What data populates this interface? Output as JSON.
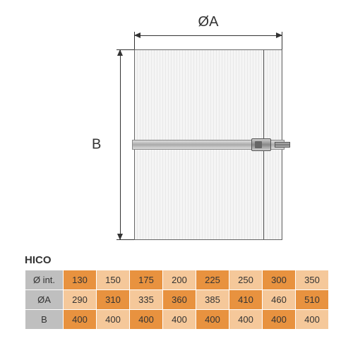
{
  "diagram": {
    "width_label": "ØA",
    "height_label": "B",
    "outline_color": "#666666",
    "band_color_stops": [
      "#dddddd",
      "#aaaaaa",
      "#dddddd"
    ],
    "hatch_colors": [
      "#f5f5f5",
      "#e8e8e8"
    ],
    "dim_text_color": "#333333"
  },
  "table": {
    "title": "HICO",
    "header_bg": "#bfbfbf",
    "cell_bg_dark": "#e8923f",
    "cell_bg_light": "#f5c89a",
    "border_color": "#ffffff",
    "text_color": "#333333",
    "font_size_pt": 10,
    "row_headers": [
      "Ø int.",
      "ØA",
      "B"
    ],
    "columns": [
      "130",
      "150",
      "175",
      "200",
      "225",
      "250",
      "300",
      "350"
    ],
    "rows": {
      "d_int": [
        "130",
        "150",
        "175",
        "200",
        "225",
        "250",
        "300",
        "350"
      ],
      "oa": [
        "290",
        "310",
        "335",
        "360",
        "385",
        "410",
        "460",
        "510"
      ],
      "b": [
        "400",
        "400",
        "400",
        "400",
        "400",
        "400",
        "400",
        "400"
      ]
    }
  }
}
